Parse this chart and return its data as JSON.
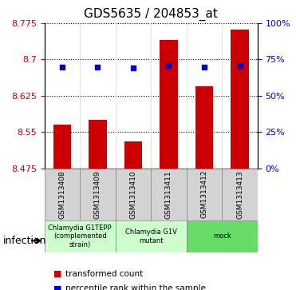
{
  "title": "GDS5635 / 204853_at",
  "samples": [
    "GSM1313408",
    "GSM1313409",
    "GSM1313410",
    "GSM1313411",
    "GSM1313412",
    "GSM1313413"
  ],
  "bar_values": [
    8.565,
    8.575,
    8.53,
    8.74,
    8.645,
    8.762
  ],
  "percentile_values": [
    8.684,
    8.684,
    8.682,
    8.687,
    8.684,
    8.687
  ],
  "ylim": [
    8.475,
    8.775
  ],
  "yticks_left": [
    8.475,
    8.55,
    8.625,
    8.7,
    8.775
  ],
  "yticks_right": [
    0,
    25,
    50,
    75,
    100
  ],
  "bar_color": "#cc0000",
  "dot_color": "#0000cc",
  "bar_bottom": 8.475,
  "groups": [
    {
      "label": "Chlamydia G1TEPP\n(complemented\nstrain)",
      "start": 0,
      "end": 2,
      "color": "#ccffcc"
    },
    {
      "label": "Chlamydia G1V\nmutant",
      "start": 2,
      "end": 4,
      "color": "#ccffcc"
    },
    {
      "label": "mock",
      "start": 4,
      "end": 6,
      "color": "#66dd66"
    }
  ],
  "factor_label": "infection",
  "legend_items": [
    {
      "color": "#cc0000",
      "label": "transformed count"
    },
    {
      "color": "#0000cc",
      "label": "percentile rank within the sample"
    }
  ],
  "grid_color": "black",
  "tick_color_left": "#cc0000",
  "tick_color_right": "#0000cc",
  "bg_color": "#d3d3d3"
}
